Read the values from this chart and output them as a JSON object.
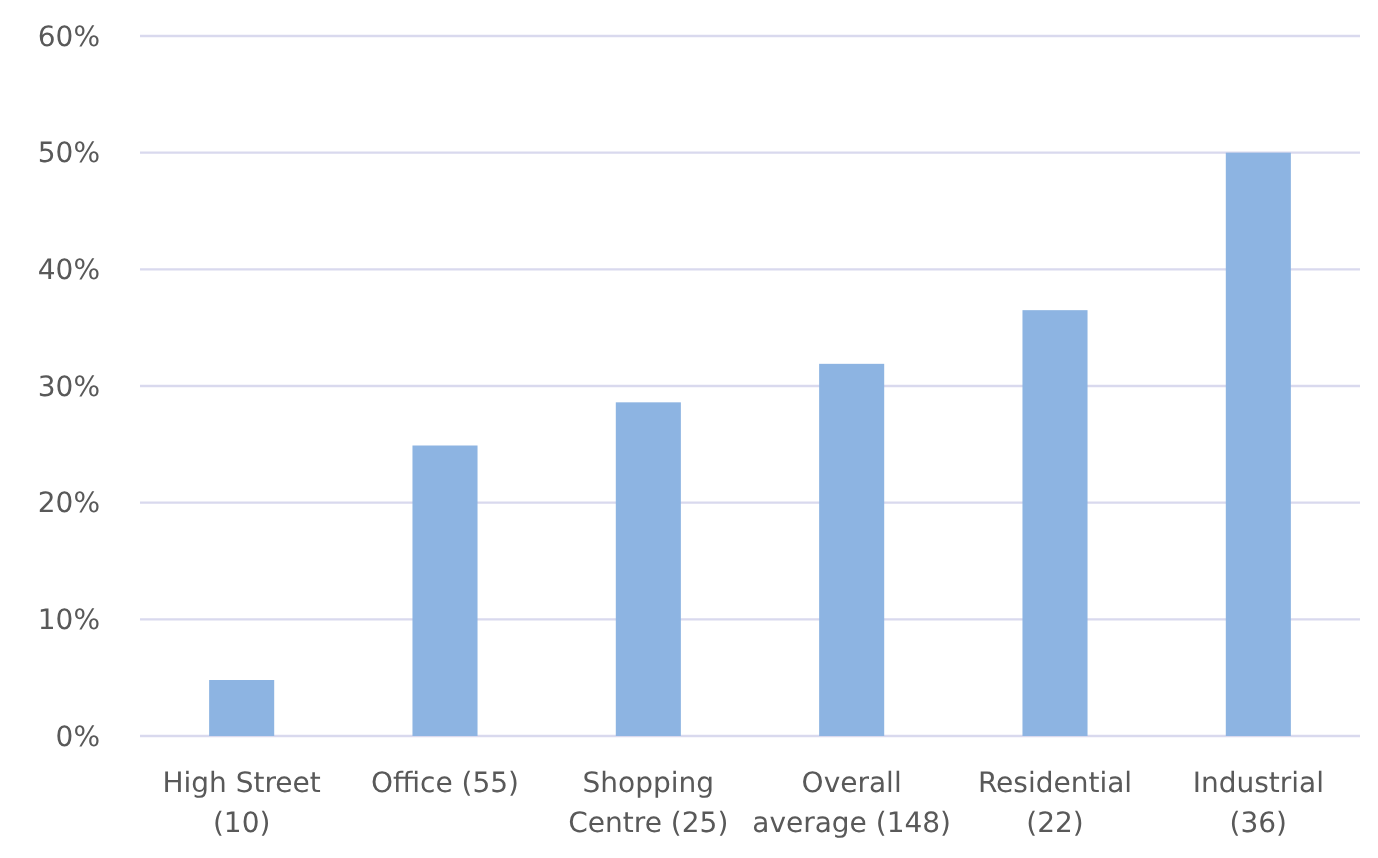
{
  "chart_data": {
    "type": "bar",
    "categories": [
      "High Street (10)",
      "Office (55)",
      "Shopping Centre (25)",
      "Overall average (148)",
      "Residential (22)",
      "Industrial (36)"
    ],
    "values": [
      4.8,
      24.9,
      28.6,
      31.9,
      36.5,
      50
    ],
    "color": "#8db4e2",
    "ylim": [
      0,
      60
    ],
    "yticks": [
      {
        "value": 0,
        "label": "0%"
      },
      {
        "value": 10,
        "label": "10%"
      },
      {
        "value": 20,
        "label": "20%"
      },
      {
        "value": 30,
        "label": "30%"
      },
      {
        "value": 40,
        "label": "40%"
      },
      {
        "value": 50,
        "label": "50%"
      },
      {
        "value": 60,
        "label": "60%"
      }
    ],
    "grid": "y"
  }
}
